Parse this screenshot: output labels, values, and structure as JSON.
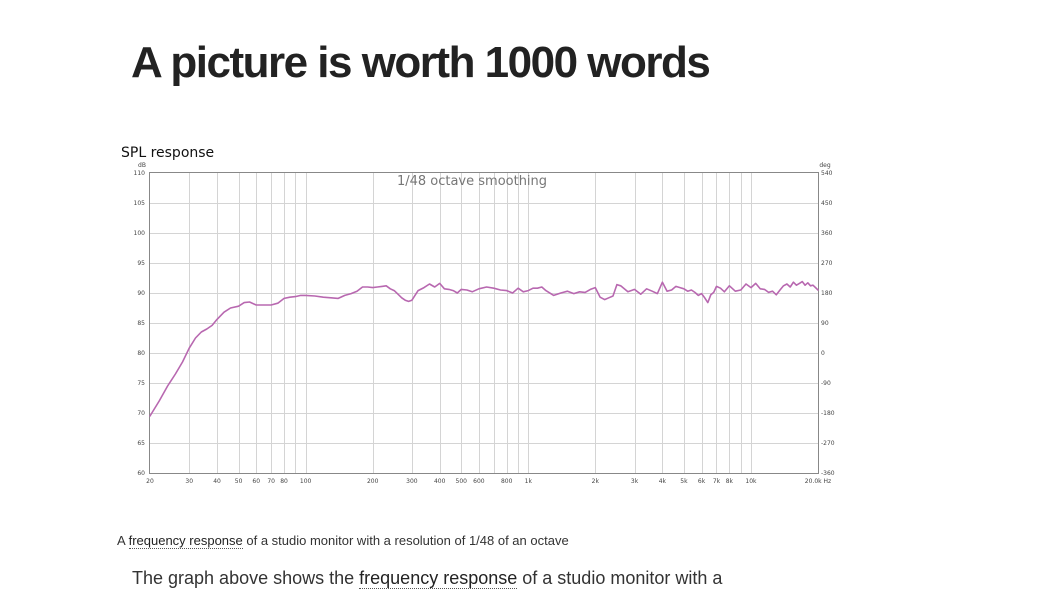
{
  "headline": "A picture is worth 1000 words",
  "caption": {
    "prefix": "A ",
    "link": "frequency response",
    "suffix": " of a studio monitor with a resolution of 1/48 of an octave"
  },
  "paragraph": {
    "prefix": "The graph above shows the ",
    "link": "frequency response",
    "suffix": " of a studio monitor with a"
  },
  "chart_data": {
    "type": "line",
    "title": "SPL response",
    "annotation": "1/48 octave smoothing",
    "y_unit": "dB",
    "y2_unit": "deg",
    "x_unit": "Hz",
    "x_scale": "log",
    "xlim": [
      20,
      20000
    ],
    "ylim": [
      60,
      110
    ],
    "y2lim": [
      -360,
      540
    ],
    "grid": true,
    "line_color": "#b868b0",
    "x_ticks": [
      {
        "v": 20,
        "l": "20"
      },
      {
        "v": 30,
        "l": "30"
      },
      {
        "v": 40,
        "l": "40"
      },
      {
        "v": 50,
        "l": "50"
      },
      {
        "v": 60,
        "l": "60"
      },
      {
        "v": 70,
        "l": "70"
      },
      {
        "v": 80,
        "l": "80"
      },
      {
        "v": 100,
        "l": "100"
      },
      {
        "v": 200,
        "l": "200"
      },
      {
        "v": 300,
        "l": "300"
      },
      {
        "v": 400,
        "l": "400"
      },
      {
        "v": 500,
        "l": "500"
      },
      {
        "v": 600,
        "l": "600"
      },
      {
        "v": 800,
        "l": "800"
      },
      {
        "v": 1000,
        "l": "1k"
      },
      {
        "v": 2000,
        "l": "2k"
      },
      {
        "v": 3000,
        "l": "3k"
      },
      {
        "v": 4000,
        "l": "4k"
      },
      {
        "v": 5000,
        "l": "5k"
      },
      {
        "v": 6000,
        "l": "6k"
      },
      {
        "v": 7000,
        "l": "7k"
      },
      {
        "v": 8000,
        "l": "8k"
      },
      {
        "v": 10000,
        "l": "10k"
      },
      {
        "v": 20000,
        "l": "20.0k Hz"
      }
    ],
    "x_minor_grid": [
      90,
      700,
      900,
      9000
    ],
    "y_ticks": [
      60,
      65,
      70,
      75,
      80,
      85,
      90,
      95,
      100,
      105,
      110
    ],
    "y2_ticks": [
      -360,
      -270,
      -180,
      -90,
      0,
      90,
      180,
      270,
      360,
      450,
      540
    ],
    "series": [
      {
        "x": [
          20,
          22,
          24,
          26,
          28,
          30,
          32,
          34,
          36,
          38,
          40,
          43,
          46,
          50,
          53,
          56,
          60,
          65,
          70,
          75,
          80,
          85,
          90,
          95,
          100,
          110,
          120,
          130,
          140,
          150,
          160,
          170,
          180,
          190,
          200,
          210,
          220,
          230,
          240,
          250,
          260,
          270,
          280,
          290,
          300,
          320,
          340,
          360,
          380,
          400,
          420,
          440,
          460,
          480,
          500,
          530,
          560,
          600,
          650,
          700,
          750,
          800,
          850,
          900,
          950,
          1000,
          1050,
          1100,
          1150,
          1200,
          1300,
          1400,
          1500,
          1600,
          1700,
          1800,
          1900,
          2000,
          2100,
          2200,
          2300,
          2400,
          2500,
          2600,
          2800,
          3000,
          3200,
          3400,
          3600,
          3800,
          4000,
          4200,
          4400,
          4600,
          4800,
          5000,
          5200,
          5400,
          5600,
          5800,
          6000,
          6200,
          6400,
          6600,
          6800,
          7000,
          7300,
          7600,
          8000,
          8500,
          9000,
          9500,
          10000,
          10500,
          11000,
          11500,
          12000,
          12500,
          13000,
          13500,
          14000,
          14500,
          15000,
          15500,
          16000,
          16500,
          17000,
          17500,
          18000,
          18500,
          19000,
          20000
        ],
        "y": [
          69.5,
          72,
          74.5,
          76.5,
          78.5,
          80.8,
          82.5,
          83.5,
          84,
          84.6,
          85.6,
          86.8,
          87.5,
          87.8,
          88.4,
          88.5,
          88,
          88,
          88,
          88.3,
          89.1,
          89.3,
          89.4,
          89.6,
          89.6,
          89.5,
          89.3,
          89.2,
          89.1,
          89.6,
          89.9,
          90.3,
          91,
          91,
          90.9,
          91,
          91.1,
          91.2,
          90.7,
          90.4,
          89.8,
          89.2,
          88.8,
          88.6,
          88.8,
          90.4,
          90.9,
          91.5,
          91,
          91.6,
          90.7,
          90.6,
          90.4,
          90,
          90.6,
          90.5,
          90.2,
          90.7,
          91,
          90.8,
          90.5,
          90.4,
          90,
          90.8,
          90.2,
          90.4,
          90.8,
          90.8,
          91,
          90.4,
          89.6,
          90,
          90.3,
          89.9,
          90.2,
          90.1,
          90.6,
          90.9,
          89.3,
          88.9,
          89.2,
          89.5,
          91.4,
          91.2,
          90.2,
          90.6,
          89.8,
          90.7,
          90.3,
          89.9,
          91.8,
          90.3,
          90.5,
          91.1,
          90.9,
          90.7,
          90.3,
          90.5,
          90.1,
          89.6,
          89.9,
          89.2,
          88.4,
          89.7,
          90.1,
          91.1,
          90.8,
          90.2,
          91.2,
          90.3,
          90.5,
          91.5,
          90.9,
          91.6,
          90.7,
          90.6,
          90.1,
          90.3,
          89.7,
          90.5,
          91.2,
          91.5,
          91,
          91.8,
          91.3,
          91.6,
          91.9,
          91.3,
          91.7,
          91.2,
          91.3,
          90.5
        ]
      }
    ]
  }
}
